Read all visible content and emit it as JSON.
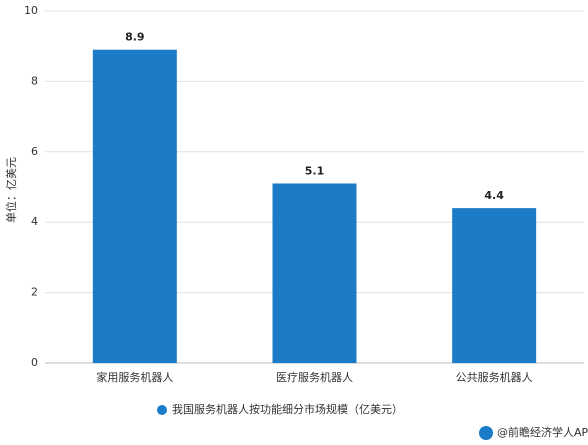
{
  "chart_data": {
    "type": "bar",
    "y_label": "单位：亿美元",
    "categories": [
      "家用服务机器人",
      "医疗服务机器人",
      "公共服务机器人"
    ],
    "series": [
      {
        "name": "我国服务机器人按功能细分市场规模（亿美元）",
        "color": "#1c7bc6",
        "values": [
          8.9,
          5.1,
          4.4
        ]
      }
    ],
    "ylim": [
      0,
      10
    ],
    "yticks": [
      0,
      2,
      4,
      6,
      8,
      10
    ],
    "grid": true,
    "footer": "@前瞻经济学人APP"
  }
}
